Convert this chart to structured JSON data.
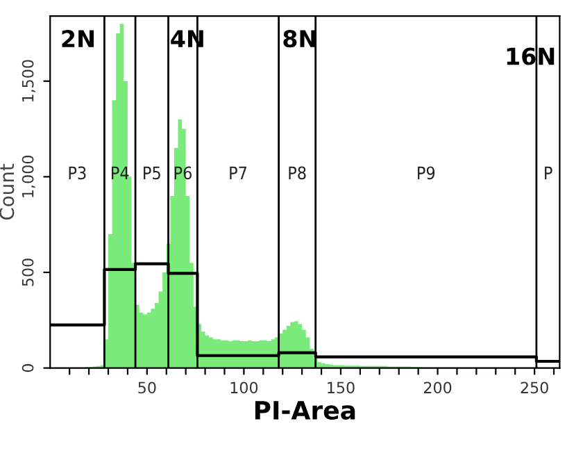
{
  "chart_data": {
    "type": "histogram",
    "xlabel": "PI-Area",
    "ylabel": "Count",
    "bins": [
      0,
      2,
      4,
      6,
      8,
      10,
      12,
      14,
      16,
      18,
      20,
      22,
      24,
      26,
      28,
      30,
      32,
      34,
      36,
      38,
      40,
      42,
      44,
      46,
      48,
      50,
      52,
      54,
      56,
      58,
      60,
      62,
      64,
      66,
      68,
      70,
      72,
      74,
      76,
      78,
      80,
      82,
      84,
      86,
      88,
      90,
      92,
      94,
      96,
      98,
      100,
      102,
      104,
      106,
      108,
      110,
      112,
      114,
      116,
      118,
      120,
      122,
      124,
      126,
      128,
      130,
      132,
      134,
      136,
      138,
      140,
      142,
      144,
      146,
      148,
      150,
      152,
      154,
      156,
      158,
      160,
      162,
      164,
      166,
      168,
      170,
      172,
      174,
      176,
      178,
      180,
      182,
      184,
      186,
      188,
      190,
      192,
      194,
      196,
      198,
      200,
      202,
      204,
      206,
      208,
      210,
      212,
      214,
      216,
      218,
      220,
      222,
      224,
      226,
      228,
      230,
      232,
      234,
      236,
      238,
      240,
      242,
      244,
      246,
      248,
      250,
      252,
      254,
      256,
      258,
      260,
      262
    ],
    "values": [
      0,
      0,
      0,
      0,
      0,
      0,
      0,
      0,
      0,
      5,
      5,
      8,
      10,
      15,
      150,
      700,
      1400,
      1750,
      1800,
      1500,
      1000,
      550,
      330,
      290,
      280,
      290,
      310,
      340,
      400,
      500,
      650,
      900,
      1150,
      1300,
      1250,
      900,
      550,
      320,
      230,
      190,
      170,
      160,
      150,
      150,
      145,
      145,
      140,
      145,
      145,
      140,
      140,
      145,
      140,
      140,
      145,
      145,
      140,
      150,
      160,
      180,
      200,
      220,
      240,
      245,
      230,
      200,
      160,
      100,
      50,
      30,
      25,
      20,
      18,
      15,
      15,
      15,
      12,
      12,
      12,
      12,
      10,
      10,
      10,
      10,
      10,
      10,
      10,
      8,
      8,
      8,
      8,
      8,
      8,
      6,
      6,
      5,
      3,
      3,
      3,
      3,
      3,
      3,
      3,
      3,
      3,
      3,
      3,
      3,
      3,
      3,
      3,
      3,
      3,
      3,
      3,
      3,
      3,
      3,
      3,
      3,
      3,
      3,
      3,
      3,
      3,
      3,
      3,
      3,
      3,
      3,
      3
    ],
    "color": "#7aea7a",
    "series": [
      {
        "type": "step",
        "color": "#000000",
        "x": [
          0,
          28,
          44,
          61,
          76,
          118,
          137,
          251,
          263
        ],
        "values": [
          225,
          515,
          545,
          495,
          65,
          80,
          58,
          35,
          35
        ]
      }
    ],
    "ref_lines": [
      {
        "axis": "x",
        "value": 28
      },
      {
        "axis": "x",
        "value": 44
      },
      {
        "axis": "x",
        "value": 61
      },
      {
        "axis": "x",
        "value": 76
      },
      {
        "axis": "x",
        "value": 118
      },
      {
        "axis": "x",
        "value": 137
      },
      {
        "axis": "x",
        "value": 251
      }
    ],
    "annotations": [
      "P3",
      "P4",
      "P5",
      "P6",
      "P7",
      "P8",
      "P9",
      "P",
      "2N",
      "4N",
      "8N",
      "16N"
    ],
    "xlim": [
      0,
      263
    ],
    "ylim": [
      0,
      1840
    ],
    "xticks": [
      {
        "value": 10,
        "label": null
      },
      {
        "value": 20,
        "label": null
      },
      {
        "value": 30,
        "label": null
      },
      {
        "value": 40,
        "label": null
      },
      50,
      {
        "value": 60,
        "label": null
      },
      {
        "value": 70,
        "label": null
      },
      {
        "value": 80,
        "label": null
      },
      {
        "value": 90,
        "label": null
      },
      100,
      {
        "value": 110,
        "label": null
      },
      {
        "value": 120,
        "label": null
      },
      {
        "value": 130,
        "label": null
      },
      {
        "value": 140,
        "label": null
      },
      150,
      {
        "value": 160,
        "label": null
      },
      {
        "value": 170,
        "label": null
      },
      {
        "value": 180,
        "label": null
      },
      {
        "value": 190,
        "label": null
      },
      200,
      {
        "value": 210,
        "label": null
      },
      {
        "value": 220,
        "label": null
      },
      {
        "value": 230,
        "label": null
      },
      {
        "value": 240,
        "label": null
      },
      250,
      {
        "value": 260,
        "label": null
      }
    ],
    "yticks": [
      0,
      500,
      {
        "value": 1000,
        "label": "1,000"
      },
      {
        "value": 1500,
        "label": "1,500"
      }
    ],
    "legend": false
  }
}
